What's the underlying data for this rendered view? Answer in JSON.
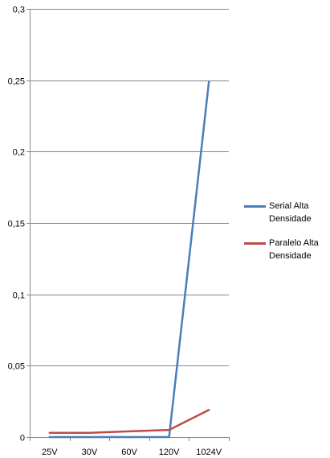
{
  "chart_data": {
    "type": "line",
    "categories": [
      "25V",
      "30V",
      "60V",
      "120V",
      "1024V"
    ],
    "series": [
      {
        "name": "Serial Alta Densidade",
        "color": "#4a7ebb",
        "values": [
          0,
          0,
          0,
          0,
          0.249
        ]
      },
      {
        "name": "Paralelo Alta Densidade",
        "color": "#be4b48",
        "values": [
          0.003,
          0.003,
          0.004,
          0.005,
          0.019
        ]
      }
    ],
    "ylim": [
      0,
      0.3
    ],
    "yticks": [
      0,
      0.05,
      0.1,
      0.15,
      0.2,
      0.25,
      0.3
    ],
    "ytick_labels": [
      "0",
      "0,05",
      "0,1",
      "0,15",
      "0,2",
      "0,25",
      "0,3"
    ],
    "title": "",
    "xlabel": "",
    "ylabel": "",
    "grid": true,
    "legend_position": "right"
  }
}
